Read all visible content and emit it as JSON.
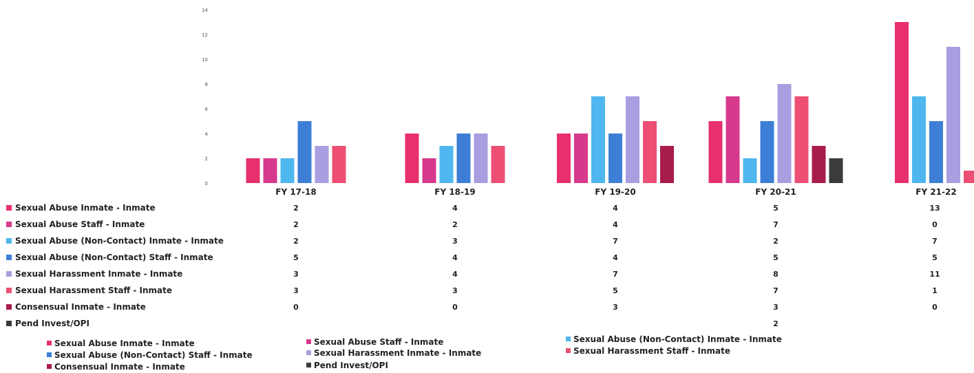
{
  "chart_data": {
    "type": "bar",
    "title": "",
    "xlabel": "",
    "ylabel": "",
    "ylim": [
      0,
      14
    ],
    "yticks": [
      0,
      2,
      4,
      6,
      8,
      10,
      12,
      14
    ],
    "grid": false,
    "legend_position": "bottom",
    "categories": [
      "FY 17-18",
      "FY 18-19",
      "FY 19-20",
      "FY 20-21",
      "FY 21-22"
    ],
    "series": [
      {
        "name": "Sexual Abuse Inmate - Inmate",
        "color": "#e8306e",
        "values": [
          2,
          4,
          4,
          5,
          13
        ],
        "table_values": [
          "2",
          "4",
          "4",
          "5",
          "13"
        ]
      },
      {
        "name": "Sexual Abuse Staff - Inmate",
        "color": "#d7398c",
        "values": [
          2,
          2,
          4,
          7,
          0
        ],
        "table_values": [
          "2",
          "2",
          "4",
          "7",
          "0"
        ]
      },
      {
        "name": "Sexual Abuse (Non-Contact) Inmate - Inmate",
        "color": "#4fb7ef",
        "values": [
          2,
          3,
          7,
          2,
          7
        ],
        "table_values": [
          "2",
          "3",
          "7",
          "2",
          "7"
        ]
      },
      {
        "name": "Sexual Abuse (Non-Contact) Staff - Inmate",
        "color": "#3d7fd6",
        "values": [
          5,
          4,
          4,
          5,
          5
        ],
        "table_values": [
          "5",
          "4",
          "4",
          "5",
          "5"
        ]
      },
      {
        "name": "Sexual Harassment Inmate - Inmate",
        "color": "#a89ee0",
        "values": [
          3,
          4,
          7,
          8,
          11
        ],
        "table_values": [
          "3",
          "4",
          "7",
          "8",
          "11"
        ]
      },
      {
        "name": "Sexual Harassment Staff - Inmate",
        "color": "#ec4f73",
        "values": [
          3,
          3,
          5,
          7,
          1
        ],
        "table_values": [
          "3",
          "3",
          "5",
          "7",
          "1"
        ]
      },
      {
        "name": "Consensual Inmate - Inmate",
        "color": "#a81c4c",
        "values": [
          0,
          0,
          3,
          3,
          0
        ],
        "table_values": [
          "0",
          "0",
          "3",
          "3",
          "0"
        ]
      },
      {
        "name": "Pend Invest/OPI",
        "color": "#3b3b3b",
        "values": [
          0,
          0,
          0,
          2,
          0
        ],
        "table_values": [
          "",
          "",
          "",
          "2",
          ""
        ]
      }
    ]
  }
}
